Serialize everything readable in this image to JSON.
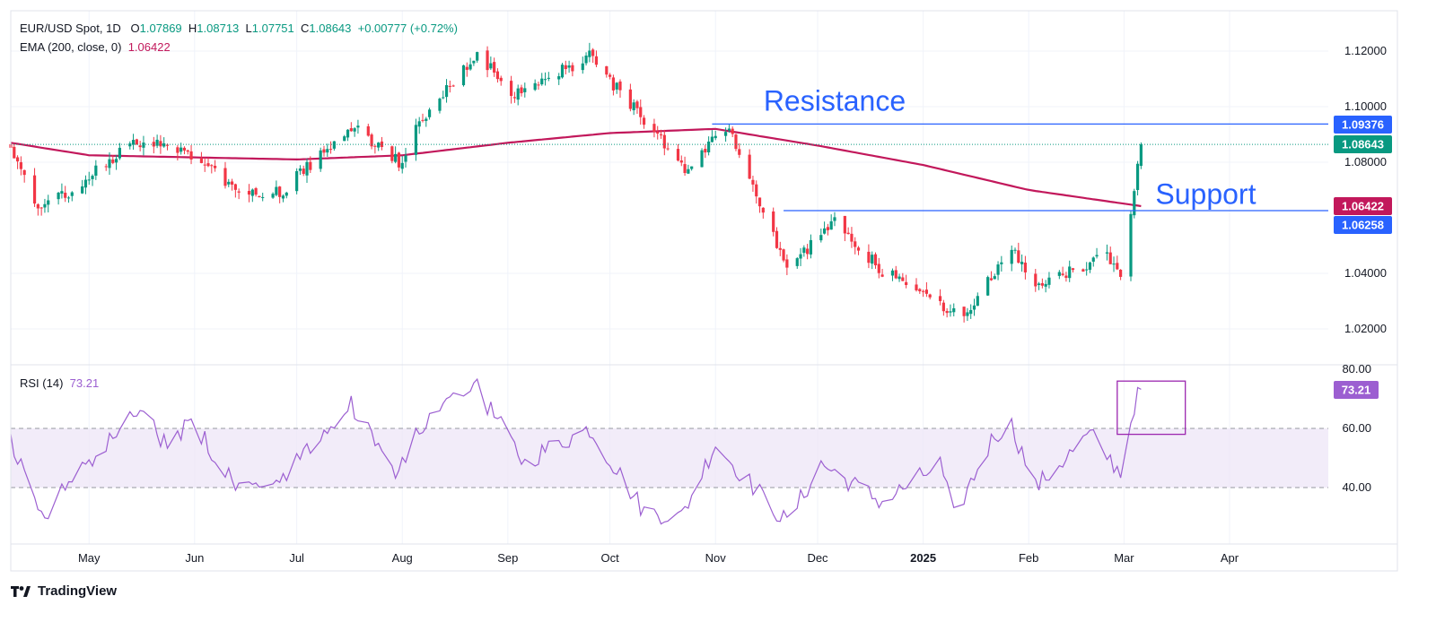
{
  "legend": {
    "symbol": "EUR/USD Spot, 1D",
    "o_label": "O",
    "o_value": "1.07869",
    "h_label": "H",
    "h_value": "1.08713",
    "l_label": "L",
    "l_value": "1.07751",
    "c_label": "C",
    "c_value": "1.08643",
    "change": "+0.00777 (+0.72%)",
    "ema_label": "EMA (200, close, 0)",
    "ema_value": "1.06422",
    "rsi_label": "RSI (14)",
    "rsi_value": "73.21"
  },
  "brand": {
    "name": "TradingView",
    "logo_icon": "tradingview-logo-icon"
  },
  "colors": {
    "up": "#089981",
    "down": "#f23645",
    "ema": "#c2185b",
    "rsi": "#9c5fd1",
    "level": "#2962ff",
    "rsi_box": "#9c27b0"
  },
  "chart_data": [
    {
      "type": "candlestick",
      "title": "EUR/USD Spot, 1D",
      "x_ticks": [
        "May",
        "Jun",
        "Jul",
        "Aug",
        "Sep",
        "Oct",
        "Nov",
        "Dec",
        "2025",
        "Feb",
        "Mar",
        "Apr"
      ],
      "x_range": [
        "2024-04-08",
        "2025-04-30"
      ],
      "y_ticks": [
        "1.12000",
        "1.10000",
        "1.08000",
        "1.04000",
        "1.02000"
      ],
      "ylim": [
        1.012,
        1.124
      ],
      "grid": true,
      "anchors": [
        [
          "2024-04-08",
          1.086
        ],
        [
          "2024-04-16",
          1.063
        ],
        [
          "2024-04-26",
          1.07
        ],
        [
          "2024-05-15",
          1.088
        ],
        [
          "2024-05-30",
          1.083
        ],
        [
          "2024-06-14",
          1.07
        ],
        [
          "2024-06-26",
          1.069
        ],
        [
          "2024-07-17",
          1.093
        ],
        [
          "2024-08-01",
          1.079
        ],
        [
          "2024-08-05",
          1.092
        ],
        [
          "2024-08-23",
          1.119
        ],
        [
          "2024-09-03",
          1.104
        ],
        [
          "2024-09-25",
          1.118
        ],
        [
          "2024-10-23",
          1.078
        ],
        [
          "2024-11-05",
          1.093
        ],
        [
          "2024-11-22",
          1.042
        ],
        [
          "2024-12-06",
          1.058
        ],
        [
          "2024-12-20",
          1.041
        ],
        [
          "2025-01-13",
          1.024
        ],
        [
          "2025-01-27",
          1.05
        ],
        [
          "2025-02-03",
          1.035
        ],
        [
          "2025-02-24",
          1.046
        ],
        [
          "2025-02-28",
          1.038
        ],
        [
          "2025-03-05",
          1.079
        ],
        [
          "2025-03-06",
          1.0864
        ]
      ],
      "last_candle": {
        "open": 1.07869,
        "high": 1.08713,
        "low": 1.07751,
        "close": 1.08643
      },
      "ema_200": [
        [
          "2024-04-08",
          1.087
        ],
        [
          "2024-05-01",
          1.0825
        ],
        [
          "2024-07-01",
          1.081
        ],
        [
          "2024-08-01",
          1.0825
        ],
        [
          "2024-09-01",
          1.087
        ],
        [
          "2024-10-01",
          1.0905
        ],
        [
          "2024-11-01",
          1.092
        ],
        [
          "2024-12-01",
          1.086
        ],
        [
          "2025-01-01",
          1.079
        ],
        [
          "2025-02-01",
          1.07
        ],
        [
          "2025-03-06",
          1.0642
        ]
      ],
      "levels": [
        {
          "name": "Resistance",
          "value": 1.09376,
          "label": "1.09376",
          "from": "2024-10-31",
          "to": "2025-04-30"
        },
        {
          "name": "Support",
          "value": 1.06258,
          "label": "1.06258",
          "from": "2024-11-21",
          "to": "2025-04-30"
        }
      ],
      "annotations": [
        {
          "text": "Resistance",
          "date": "2024-12-06",
          "value": 1.0985
        },
        {
          "text": "Support",
          "date": "2025-03-25",
          "value": 1.065
        }
      ],
      "price_labels": [
        {
          "text": "1.09376",
          "value": 1.09376,
          "color": "#2962ff"
        },
        {
          "text": "1.08643",
          "value": 1.08643,
          "color": "#089981"
        },
        {
          "text": "1.06422",
          "value": 1.06422,
          "color": "#c2185b"
        },
        {
          "text": "1.06258",
          "value": 1.06258,
          "color": "#2962ff"
        }
      ]
    },
    {
      "type": "line",
      "title": "RSI (14)",
      "y_ticks": [
        "80.00",
        "60.00",
        "40.00"
      ],
      "ylim": [
        15,
        80
      ],
      "band": [
        40,
        60
      ],
      "last_value": 73.21,
      "last_label": "73.21",
      "anchors": [
        [
          "2024-04-08",
          55
        ],
        [
          "2024-04-17",
          30
        ],
        [
          "2024-04-26",
          42
        ],
        [
          "2024-05-15",
          65
        ],
        [
          "2024-05-24",
          55
        ],
        [
          "2024-05-31",
          62
        ],
        [
          "2024-06-14",
          40
        ],
        [
          "2024-06-26",
          42
        ],
        [
          "2024-07-17",
          68
        ],
        [
          "2024-07-31",
          45
        ],
        [
          "2024-08-05",
          58
        ],
        [
          "2024-08-22",
          75
        ],
        [
          "2024-09-06",
          48
        ],
        [
          "2024-09-11",
          52
        ],
        [
          "2024-09-25",
          60
        ],
        [
          "2024-10-11",
          32
        ],
        [
          "2024-10-22",
          30
        ],
        [
          "2024-11-01",
          55
        ],
        [
          "2024-11-06",
          48
        ],
        [
          "2024-11-22",
          28
        ],
        [
          "2024-12-02",
          48
        ],
        [
          "2024-12-20",
          35
        ],
        [
          "2025-01-06",
          48
        ],
        [
          "2025-01-10",
          30
        ],
        [
          "2025-01-22",
          58
        ],
        [
          "2025-01-27",
          61
        ],
        [
          "2025-02-03",
          40
        ],
        [
          "2025-02-19",
          58
        ],
        [
          "2025-02-28",
          45
        ],
        [
          "2025-03-04",
          68
        ],
        [
          "2025-03-06",
          73.21
        ]
      ],
      "box": {
        "from": "2025-02-27",
        "to": "2025-03-19",
        "low": 58,
        "high": 76
      }
    }
  ]
}
